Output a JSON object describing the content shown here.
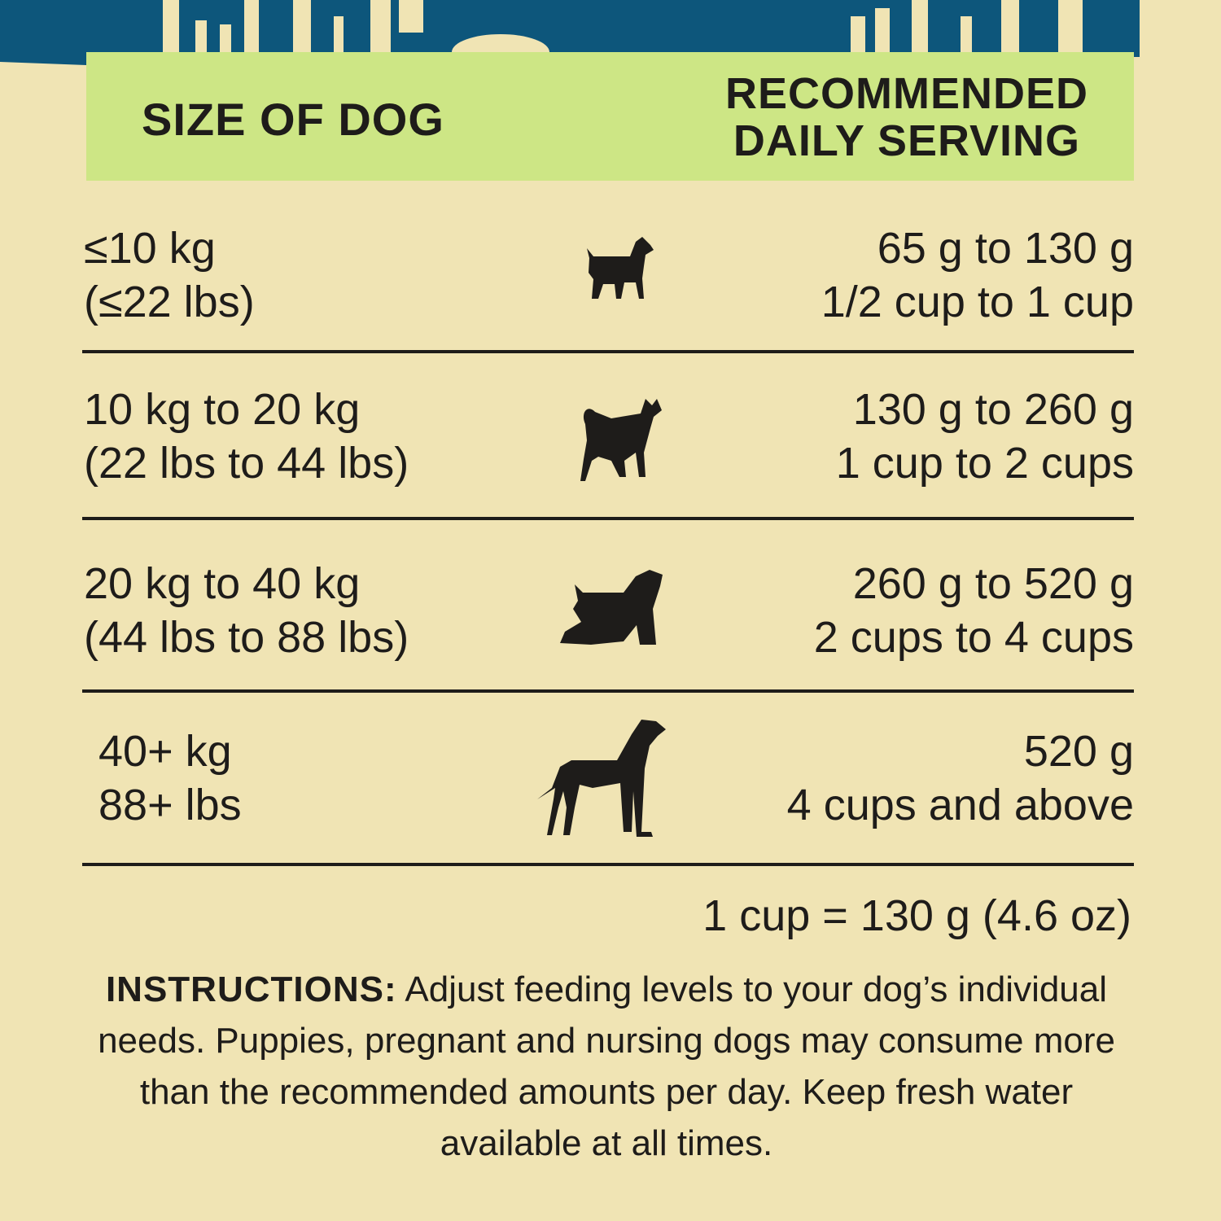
{
  "colors": {
    "background": "#f0e4b4",
    "banner": "#0d567b",
    "header": "#cde685",
    "text": "#1e1c1a"
  },
  "header": {
    "size_label": "SIZE OF DOG",
    "serving_label_line1": "RECOMMENDED",
    "serving_label_line2": "DAILY SERVING"
  },
  "rows": [
    {
      "size_line1": "≤10 kg",
      "size_line2": "(≤22 lbs)",
      "icon": "small-terrier-dog-icon",
      "grams": "65 g to 130 g",
      "cups": "1/2  cup to 1 cup"
    },
    {
      "size_line1": "10 kg to 20 kg",
      "size_line2": "(22 lbs to 44 lbs)",
      "icon": "medium-spitz-dog-icon",
      "grams": "130 g to 260 g",
      "cups": "1 cup to 2 cups"
    },
    {
      "size_line1": "20 kg to 40 kg",
      "size_line2": "(44 lbs to 88 lbs)",
      "icon": "spaniel-dog-icon",
      "grams": "260 g to 520 g",
      "cups": "2 cups to 4 cups"
    },
    {
      "size_line1": "40+ kg",
      "size_line2": "88+ lbs",
      "icon": "great-dane-dog-icon",
      "grams": "520 g",
      "cups": "4 cups and above"
    }
  ],
  "conversion": "1 cup = 130 g (4.6 oz)",
  "instructions": {
    "label": "INSTRUCTIONS:",
    "text": "Adjust feeding levels to your dog’s individual needs. Puppies, pregnant and nursing dogs may consume more than the recommended amounts per day. Keep fresh water available at all times."
  }
}
